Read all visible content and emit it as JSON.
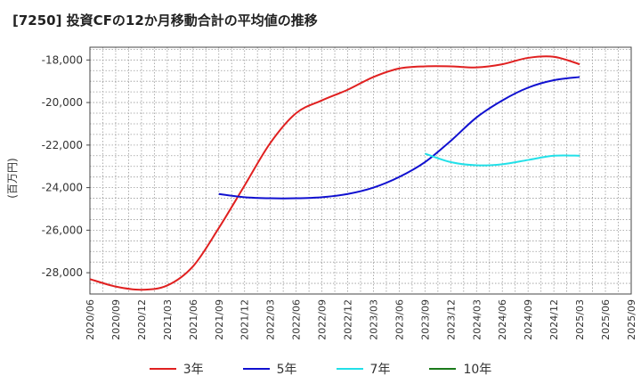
{
  "chart_data": {
    "type": "line",
    "title": "[7250]  投資CFの12か月移動合計の平均値の推移",
    "ylabel": "(百万円)",
    "xlabel": "",
    "ylim": [
      -29000,
      -17400
    ],
    "yticks": [
      -28000,
      -26000,
      -24000,
      -22000,
      -20000,
      -18000
    ],
    "ytick_labels": [
      "-28,000",
      "-26,000",
      "-24,000",
      "-22,000",
      "-20,000",
      "-18,000"
    ],
    "x_categories": [
      "2020/06",
      "2020/09",
      "2020/12",
      "2021/03",
      "2021/06",
      "2021/09",
      "2021/12",
      "2022/03",
      "2022/06",
      "2022/09",
      "2022/12",
      "2023/03",
      "2023/06",
      "2023/09",
      "2023/12",
      "2024/03",
      "2024/06",
      "2024/09",
      "2024/12",
      "2025/03",
      "2025/06",
      "2025/09"
    ],
    "grid": true,
    "legend_position": "bottom",
    "series": [
      {
        "name": "3年",
        "color": "#e02020",
        "points": [
          [
            "2020/06",
            -28300
          ],
          [
            "2020/09",
            -28650
          ],
          [
            "2020/12",
            -28800
          ],
          [
            "2021/03",
            -28600
          ],
          [
            "2021/06",
            -27700
          ],
          [
            "2021/09",
            -25900
          ],
          [
            "2021/12",
            -23900
          ],
          [
            "2022/03",
            -21900
          ],
          [
            "2022/06",
            -20500
          ],
          [
            "2022/09",
            -19900
          ],
          [
            "2022/12",
            -19400
          ],
          [
            "2023/03",
            -18800
          ],
          [
            "2023/06",
            -18400
          ],
          [
            "2023/09",
            -18300
          ],
          [
            "2023/12",
            -18300
          ],
          [
            "2024/03",
            -18350
          ],
          [
            "2024/06",
            -18200
          ],
          [
            "2024/09",
            -17900
          ],
          [
            "2024/12",
            -17850
          ],
          [
            "2025/03",
            -18200
          ]
        ]
      },
      {
        "name": "5年",
        "color": "#1010d0",
        "points": [
          [
            "2021/09",
            -24300
          ],
          [
            "2021/12",
            -24450
          ],
          [
            "2022/03",
            -24500
          ],
          [
            "2022/06",
            -24500
          ],
          [
            "2022/09",
            -24450
          ],
          [
            "2022/12",
            -24300
          ],
          [
            "2023/03",
            -24000
          ],
          [
            "2023/06",
            -23500
          ],
          [
            "2023/09",
            -22800
          ],
          [
            "2023/12",
            -21800
          ],
          [
            "2024/03",
            -20700
          ],
          [
            "2024/06",
            -19900
          ],
          [
            "2024/09",
            -19300
          ],
          [
            "2024/12",
            -18950
          ],
          [
            "2025/03",
            -18800
          ]
        ]
      },
      {
        "name": "7年",
        "color": "#22e0e8",
        "points": [
          [
            "2023/09",
            -22400
          ],
          [
            "2023/12",
            -22800
          ],
          [
            "2024/03",
            -22950
          ],
          [
            "2024/06",
            -22900
          ],
          [
            "2024/09",
            -22700
          ],
          [
            "2024/12",
            -22500
          ],
          [
            "2025/03",
            -22500
          ]
        ]
      },
      {
        "name": "10年",
        "color": "#1a7a1a",
        "points": []
      }
    ]
  }
}
